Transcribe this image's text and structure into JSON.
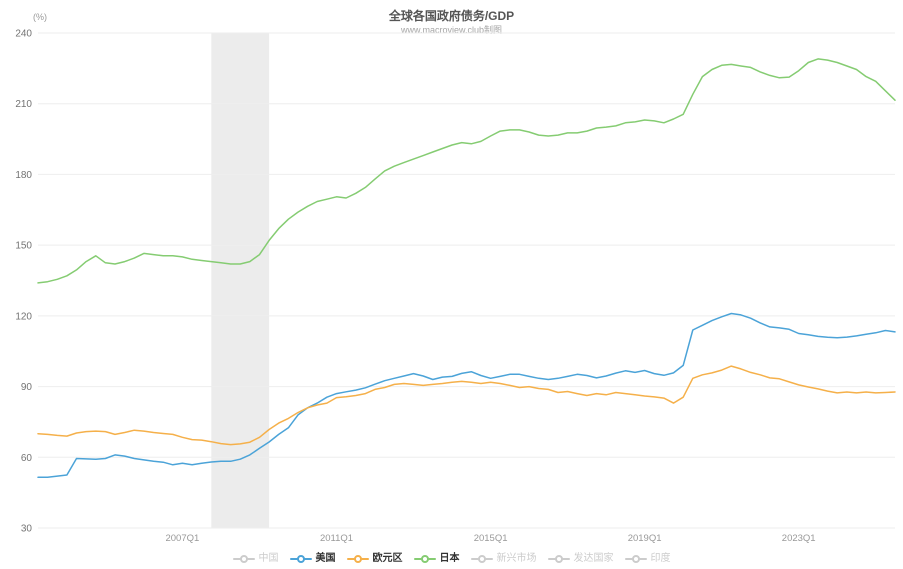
{
  "header": {
    "title": "全球各国政府债务/GDP",
    "subtitle": "www.macroview.club制图"
  },
  "chart_data": {
    "type": "line",
    "title": "全球各国政府债务/GDP",
    "subtitle": "www.macroview.club制图",
    "y_unit": "(%)",
    "ylim": [
      30,
      240
    ],
    "y_ticks": [
      240,
      210,
      180,
      150,
      120,
      90,
      60,
      30
    ],
    "x_start": "2003Q2",
    "x_end": "2025Q3",
    "x_frequency": "quarterly",
    "x_tick_labels": [
      "2007Q1",
      "2011Q1",
      "2015Q1",
      "2019Q1",
      "2023Q1"
    ],
    "x_tick_indices": [
      15,
      31,
      47,
      63,
      79
    ],
    "n_points": 90,
    "plot_band": {
      "label": "recession-band",
      "from_index": 18,
      "to_index": 24,
      "from": "2007Q4",
      "to": "2009Q2",
      "color": "#ececec"
    },
    "grid": true,
    "legend_position": "bottom",
    "grid_color": "#eeeeee",
    "axis_label_color": "#999999",
    "y_label_color": "#737373",
    "inactive_color": "#cccccc",
    "series": [
      {
        "id": "us",
        "name": "美国",
        "color": "#4ba3d8",
        "values": [
          51.5,
          51.5,
          52,
          52.5,
          59.5,
          59.3,
          59.2,
          59.5,
          61,
          60.5,
          59.5,
          58.9,
          58.3,
          57.9,
          56.8,
          57.5,
          56.8,
          57.5,
          58,
          58.3,
          58.3,
          59.2,
          61,
          63.8,
          66.5,
          69.7,
          72.5,
          78,
          81,
          83,
          85.5,
          87,
          87.8,
          88.5,
          89.5,
          91,
          92.5,
          93.5,
          94.5,
          95.5,
          94.5,
          93,
          94,
          94.3,
          95.6,
          96.3,
          94.7,
          93.5,
          94.3,
          95.2,
          95.2,
          94.3,
          93.5,
          93,
          93.5,
          94.3,
          95.2,
          94.7,
          93.7,
          94.5,
          95.7,
          96.7,
          96,
          96.8,
          95.5,
          94.8,
          95.8,
          99,
          114,
          116,
          118,
          119.6,
          121,
          120.4,
          119,
          117,
          115.3,
          114.9,
          114.3,
          112.5,
          112,
          111.3,
          110.9,
          110.7,
          111,
          111.5,
          112.2,
          112.8,
          113.8,
          113.2
        ]
      },
      {
        "id": "eurozone",
        "name": "欧元区",
        "color": "#f5b04a",
        "values": [
          70,
          69.7,
          69.3,
          69,
          70.3,
          70.9,
          71.1,
          70.9,
          69.7,
          70.5,
          71.5,
          71.1,
          70.5,
          70.1,
          69.7,
          68.5,
          67.5,
          67.3,
          66.6,
          65.8,
          65.4,
          65.7,
          66.4,
          68.5,
          71.8,
          74.5,
          76.5,
          79,
          81,
          82.2,
          83,
          85.3,
          85.7,
          86.2,
          87,
          88.8,
          89.6,
          90.9,
          91.3,
          90.9,
          90.5,
          90.9,
          91.3,
          91.8,
          92.2,
          91.8,
          91.3,
          91.8,
          91.3,
          90.5,
          89.6,
          90,
          89.2,
          88.8,
          87.5,
          87.9,
          87,
          86.2,
          87,
          86.5,
          87.5,
          87,
          86.5,
          86,
          85.6,
          85.1,
          83,
          85.5,
          93.5,
          95,
          95.8,
          97,
          98.7,
          97.5,
          96,
          95,
          93.7,
          93.3,
          92,
          90.7,
          89.8,
          89,
          88.1,
          87.3,
          87.7,
          87.3,
          87.7,
          87.3,
          87.5,
          87.7
        ]
      },
      {
        "id": "japan",
        "name": "日本",
        "color": "#85cc72",
        "values": [
          134,
          134.5,
          135.5,
          137,
          139.5,
          143,
          145.5,
          142.5,
          142,
          143,
          144.5,
          146.5,
          146,
          145.5,
          145.5,
          145,
          144,
          143.5,
          143,
          142.5,
          142,
          142,
          143,
          146,
          152,
          157,
          161,
          164,
          166.5,
          168.5,
          169.5,
          170.5,
          170,
          172,
          174.5,
          178,
          181.5,
          183.5,
          185,
          186.5,
          188,
          189.5,
          191,
          192.5,
          193.5,
          193,
          194,
          196.3,
          198.4,
          198.9,
          198.9,
          198,
          196.7,
          196.3,
          196.7,
          197.6,
          197.6,
          198.4,
          199.7,
          200.1,
          200.6,
          201.9,
          202.3,
          203.1,
          202.7,
          201.9,
          203.5,
          205.5,
          214,
          221.5,
          224.5,
          226.3,
          226.7,
          226,
          225.4,
          223.5,
          222,
          221,
          221.3,
          224,
          227.5,
          229,
          228.5,
          227.5,
          226,
          224.5,
          221.5,
          219.5,
          215.5,
          211.5
        ]
      }
    ],
    "legend": [
      {
        "label": "中国",
        "active": false
      },
      {
        "label": "美国",
        "active": true,
        "color": "#4ba3d8"
      },
      {
        "label": "欧元区",
        "active": true,
        "color": "#f5b04a"
      },
      {
        "label": "日本",
        "active": true,
        "color": "#85cc72"
      },
      {
        "label": "新兴市场",
        "active": false
      },
      {
        "label": "发达国家",
        "active": false
      },
      {
        "label": "印度",
        "active": false
      }
    ]
  }
}
